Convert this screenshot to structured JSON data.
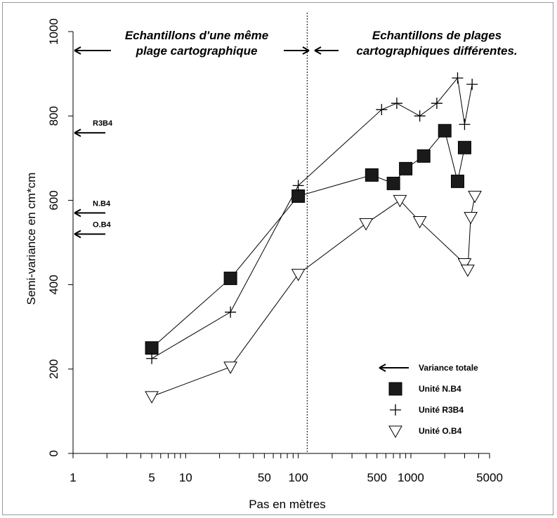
{
  "chart_data": {
    "type": "line",
    "x_scale": "log",
    "xlim": [
      1,
      5000
    ],
    "ylim": [
      0,
      1000
    ],
    "x_ticks": [
      1,
      5,
      10,
      50,
      100,
      500,
      1000,
      5000
    ],
    "x_tick_labels": [
      "1",
      "5",
      "10",
      "50",
      "100",
      "500",
      "1000",
      "5000"
    ],
    "y_ticks": [
      0,
      200,
      400,
      600,
      800,
      1000
    ],
    "y_tick_labels": [
      "0",
      "200",
      "400",
      "600",
      "800",
      "1000"
    ],
    "xlabel": "Pas en mètres",
    "ylabel": "Semi-variance en cm*cm",
    "divider_x": 120,
    "regions": {
      "left": [
        "Echantillons d'une même",
        "plage cartographique"
      ],
      "right": [
        "Echantillons de plages",
        "cartographiques différentes."
      ]
    },
    "series": [
      {
        "name": "Unité N.B4",
        "marker": "square",
        "x": [
          5,
          25,
          100,
          450,
          700,
          900,
          1300,
          2000,
          2600,
          3000
        ],
        "y": [
          250,
          415,
          610,
          660,
          640,
          675,
          705,
          765,
          645,
          725
        ]
      },
      {
        "name": "Unité R3B4",
        "marker": "plus",
        "x": [
          5,
          25,
          100,
          550,
          750,
          1200,
          1700,
          2600,
          3000,
          3500
        ],
        "y": [
          225,
          335,
          635,
          815,
          830,
          800,
          830,
          890,
          780,
          875
        ]
      },
      {
        "name": "Unité O.B4",
        "marker": "triangle-down",
        "x": [
          5,
          25,
          100,
          400,
          800,
          1200,
          3000,
          3200,
          3400,
          3700
        ],
        "y": [
          135,
          205,
          425,
          545,
          600,
          550,
          450,
          435,
          560,
          610
        ]
      }
    ],
    "variance_totale": {
      "label": "Variance totale",
      "markers": [
        {
          "name": "R3B4",
          "y": 760
        },
        {
          "name": "N.B4",
          "y": 570
        },
        {
          "name": "O.B4",
          "y": 520
        }
      ]
    },
    "legend_position": "bottom-right"
  }
}
